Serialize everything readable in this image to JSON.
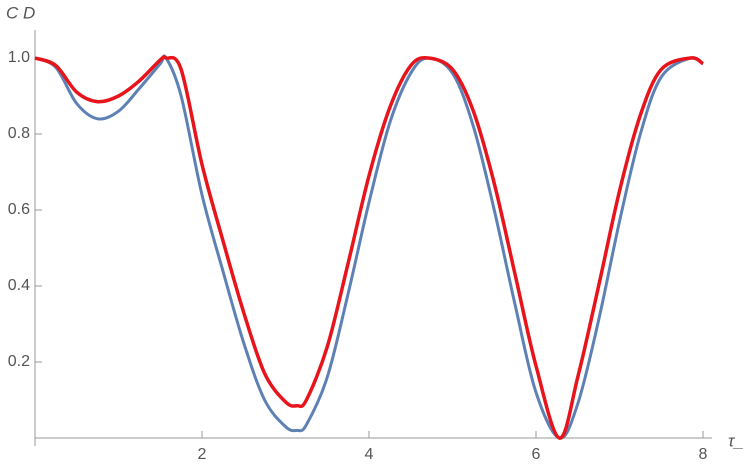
{
  "chart_data": {
    "type": "line",
    "y_label": "C D",
    "x_label": "τ_",
    "x": [
      0,
      0.25,
      0.5,
      0.75,
      1,
      1.25,
      1.5,
      1.57,
      1.75,
      2,
      2.25,
      2.5,
      2.75,
      3,
      3.14,
      3.25,
      3.5,
      3.75,
      4,
      4.25,
      4.5,
      4.71,
      5,
      5.25,
      5.5,
      5.75,
      6,
      6.28,
      6.5,
      6.75,
      7,
      7.25,
      7.5,
      7.85,
      8
    ],
    "series": [
      {
        "color": "#5e81b5",
        "values": [
          1,
          0.975,
          0.88,
          0.84,
          0.86,
          0.92,
          0.985,
          1,
          0.9,
          0.64,
          0.44,
          0.25,
          0.1,
          0.03,
          0.02,
          0.035,
          0.16,
          0.38,
          0.62,
          0.83,
          0.96,
          1,
          0.96,
          0.82,
          0.6,
          0.35,
          0.12,
          0,
          0.09,
          0.31,
          0.57,
          0.8,
          0.95,
          1,
          0.985
        ]
      },
      {
        "color": "#e8141c",
        "values": [
          1,
          0.98,
          0.91,
          0.885,
          0.9,
          0.94,
          0.995,
          1,
          0.97,
          0.72,
          0.52,
          0.33,
          0.17,
          0.095,
          0.085,
          0.1,
          0.24,
          0.46,
          0.69,
          0.87,
          0.98,
          1,
          0.97,
          0.86,
          0.67,
          0.43,
          0.19,
          0,
          0.16,
          0.4,
          0.65,
          0.85,
          0.97,
          1,
          0.985
        ]
      }
    ],
    "xlim": [
      0,
      8
    ],
    "ylim": [
      0,
      1.05
    ],
    "xticks": [
      2,
      4,
      6,
      8
    ],
    "yticks": [
      0.2,
      0.4,
      0.6,
      0.8,
      {
        "value": 1,
        "label": "1.0"
      }
    ]
  }
}
